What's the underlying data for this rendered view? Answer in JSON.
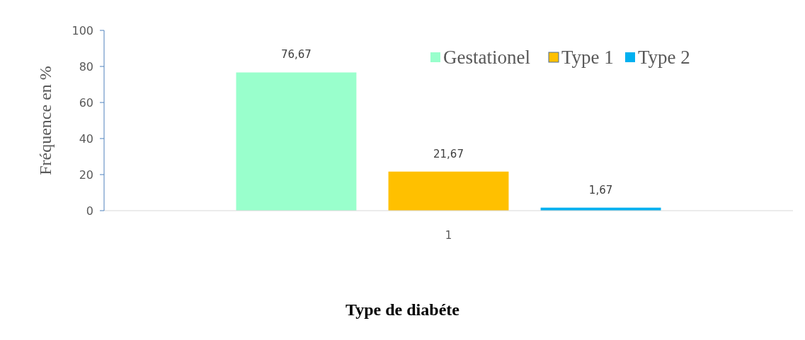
{
  "chart_data": {
    "type": "bar",
    "xlabel": "Type de diabéte",
    "ylabel": "Fréquence en %",
    "categories": [
      "1"
    ],
    "series": [
      {
        "name": "Gestationel",
        "color": "#99ffcc",
        "values": [
          76.67
        ],
        "value_labels": [
          "76,67"
        ]
      },
      {
        "name": "Type 1",
        "color": "#ffc000",
        "values": [
          21.67
        ],
        "value_labels": [
          "21,67"
        ]
      },
      {
        "name": "Type 2",
        "color": "#00b0f0",
        "values": [
          1.67
        ],
        "value_labels": [
          "1,67"
        ]
      }
    ],
    "ylim": [
      0,
      100
    ],
    "yticks": [
      0,
      20,
      40,
      60,
      80,
      100
    ],
    "legend": "top right"
  }
}
